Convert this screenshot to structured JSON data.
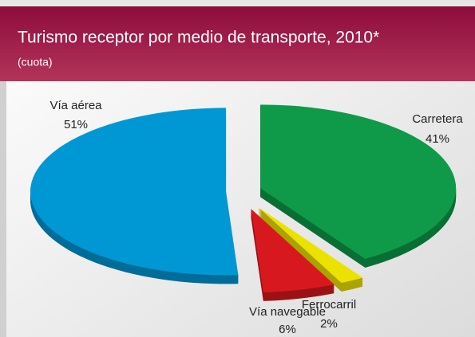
{
  "chart_data": {
    "type": "pie",
    "title": "Turismo receptor por medio de transporte, 2010*",
    "subtitle": "(cuota)",
    "categories": [
      "Carretera",
      "Ferrocarril",
      "Vía navegable",
      "Vía aérea"
    ],
    "values": [
      41,
      2,
      6,
      51
    ],
    "value_labels": [
      "41%",
      "2%",
      "6%",
      "51%"
    ],
    "colors": [
      "#0e9a48",
      "#ece200",
      "#d7191f",
      "#0098d4"
    ]
  }
}
